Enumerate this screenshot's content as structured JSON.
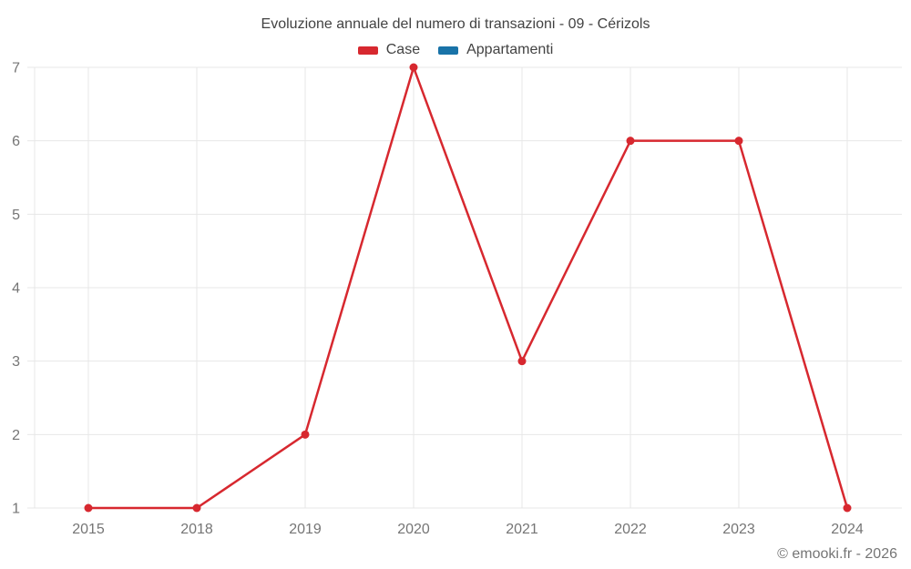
{
  "footer": "© emooki.fr - 2026",
  "colors": {
    "case_red": "#d7282f",
    "appartamenti_blue": "#1973a8",
    "grid": "#e7e7e7",
    "axis_text": "#757575",
    "title_text": "#424242"
  },
  "chart_data": {
    "type": "line",
    "title": "Evoluzione annuale del numero di transazioni - 09 - Cérizols",
    "categories": [
      "2015",
      "2018",
      "2019",
      "2020",
      "2021",
      "2022",
      "2023",
      "2024"
    ],
    "series": [
      {
        "name": "Case",
        "color": "#d7282f",
        "values": [
          1,
          1,
          2,
          7,
          3,
          6,
          6,
          1
        ]
      },
      {
        "name": "Appartamenti",
        "color": "#1973a8",
        "values": []
      }
    ],
    "xlabel": "",
    "ylabel": "",
    "ylim": [
      1,
      7
    ],
    "yticks": [
      1,
      2,
      3,
      4,
      5,
      6,
      7
    ],
    "grid": true,
    "legend_position": "top"
  }
}
